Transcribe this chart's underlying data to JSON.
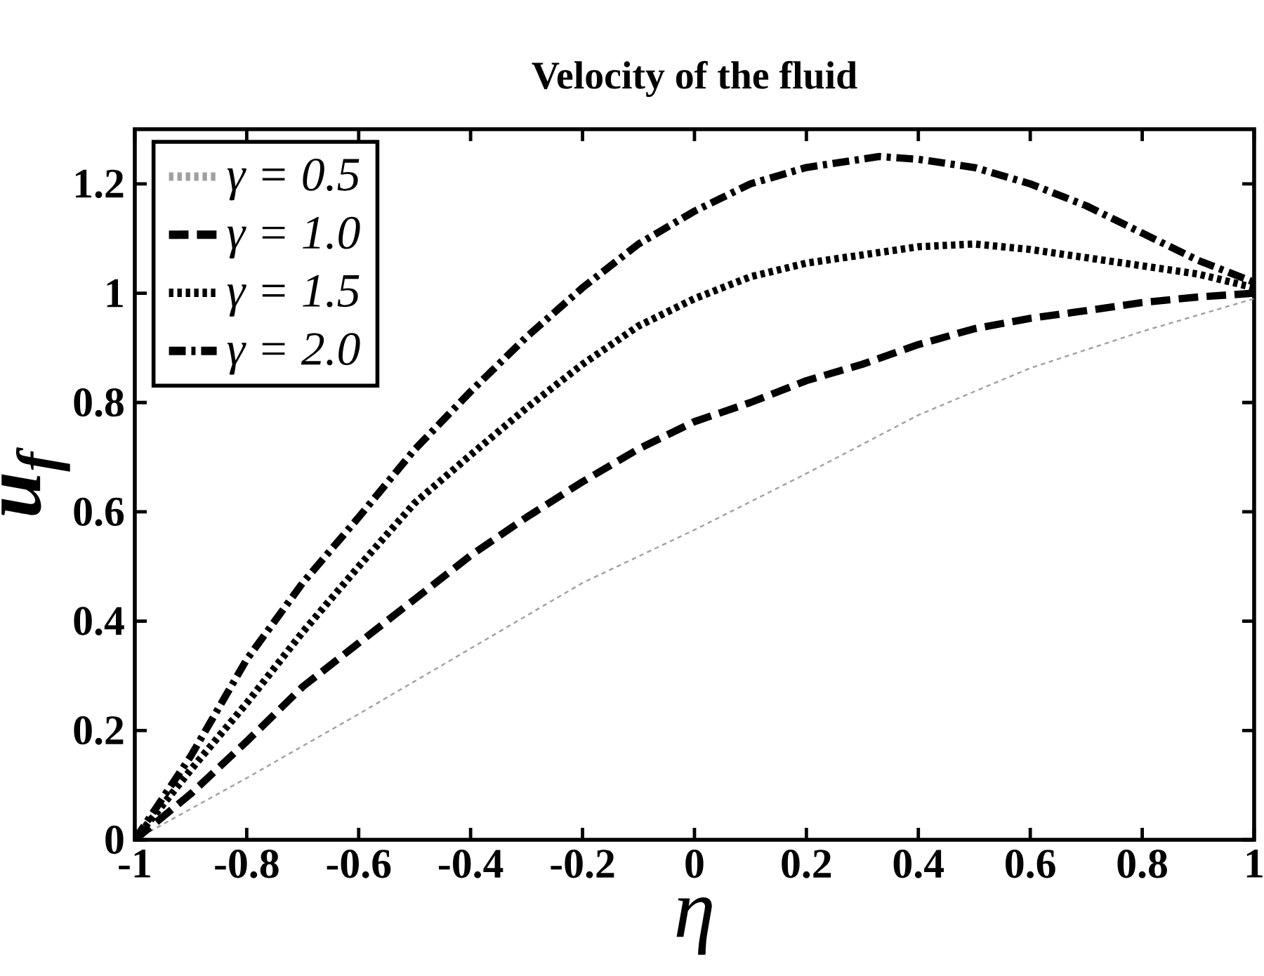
{
  "chart_data": {
    "type": "line",
    "title": "Velocity of the fluid",
    "xlabel": "η",
    "ylabel": "u$_{f}$",
    "xlim": [
      -1,
      1
    ],
    "ylim": [
      0,
      1.3
    ],
    "xticks": [
      -1,
      -0.8,
      -0.6,
      -0.4,
      -0.2,
      0,
      0.2,
      0.4,
      0.6,
      0.8,
      1
    ],
    "yticks": [
      0,
      0.2,
      0.4,
      0.6,
      0.8,
      1,
      1.2
    ],
    "legend": "top left",
    "grid": false,
    "marker": "none",
    "series": [
      {
        "name": "γ = 0.5",
        "color": "#a0a0a0",
        "line_style": "dotted",
        "x": [
          -1,
          -0.8,
          -0.6,
          -0.4,
          -0.2,
          0,
          0.2,
          0.4,
          0.6,
          0.8,
          1
        ],
        "values": [
          0,
          0.113,
          0.23,
          0.35,
          0.47,
          0.567,
          0.67,
          0.777,
          0.863,
          0.93,
          0.99
        ]
      },
      {
        "name": "γ = 1.0",
        "color": "#000000",
        "line_style": "dashed",
        "x": [
          -1,
          -0.9,
          -0.8,
          -0.7,
          -0.6,
          -0.5,
          -0.4,
          -0.3,
          -0.2,
          -0.1,
          0,
          0.1,
          0.2,
          0.3,
          0.4,
          0.5,
          0.6,
          0.7,
          0.8,
          0.9,
          1
        ],
        "values": [
          0,
          0.084,
          0.18,
          0.28,
          0.36,
          0.44,
          0.52,
          0.59,
          0.655,
          0.715,
          0.765,
          0.8,
          0.84,
          0.87,
          0.906,
          0.935,
          0.954,
          0.968,
          0.983,
          0.993,
          1.0
        ]
      },
      {
        "name": "γ = 1.5",
        "color": "#000000",
        "line_style": "dotted",
        "x": [
          -1,
          -0.9,
          -0.8,
          -0.7,
          -0.6,
          -0.5,
          -0.4,
          -0.3,
          -0.2,
          -0.1,
          0,
          0.1,
          0.2,
          0.3,
          0.4,
          0.5,
          0.6,
          0.7,
          0.8,
          0.9,
          1
        ],
        "values": [
          0,
          0.128,
          0.25,
          0.38,
          0.5,
          0.616,
          0.704,
          0.79,
          0.87,
          0.94,
          0.99,
          1.03,
          1.055,
          1.07,
          1.085,
          1.09,
          1.08,
          1.065,
          1.05,
          1.035,
          1.01
        ]
      },
      {
        "name": "γ = 2.0",
        "color": "#000000",
        "line_style": "dashdot",
        "x": [
          -1,
          -0.9,
          -0.8,
          -0.7,
          -0.6,
          -0.5,
          -0.4,
          -0.3,
          -0.2,
          -0.1,
          0,
          0.1,
          0.2,
          0.33,
          0.4,
          0.5,
          0.6,
          0.7,
          0.8,
          0.9,
          1
        ],
        "values": [
          0,
          0.153,
          0.33,
          0.47,
          0.59,
          0.714,
          0.82,
          0.92,
          1.01,
          1.09,
          1.15,
          1.2,
          1.23,
          1.25,
          1.245,
          1.23,
          1.2,
          1.16,
          1.11,
          1.06,
          1.02
        ]
      }
    ]
  }
}
